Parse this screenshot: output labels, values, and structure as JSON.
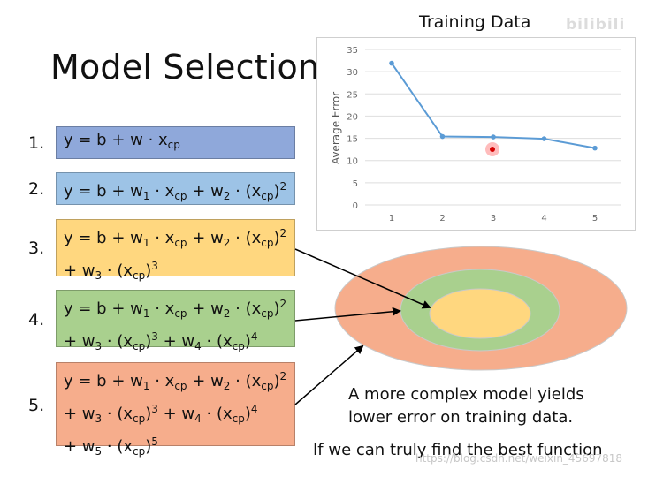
{
  "slide": {
    "title": "Model Selection",
    "watermark": "https://blog.csdn.net/weixin_45697818",
    "logo_text": "bilibili"
  },
  "models": [
    {
      "number": "1."
    },
    {
      "number": "2."
    },
    {
      "number": "3."
    },
    {
      "number": "4."
    },
    {
      "number": "5."
    }
  ],
  "captions": {
    "line1": "A more complex model yields",
    "line2": "lower error on training data.",
    "line3": "If we can truly find the best function"
  },
  "colors": {
    "model1": "#8fa8da",
    "model2": "#9dc3e6",
    "model3": "#ffd77f",
    "model4": "#a9d08e",
    "model5": "#f6ad8c",
    "line": "#5b9bd5"
  },
  "chart_data": {
    "type": "line",
    "title": "Training Data",
    "xlabel": "",
    "ylabel": "Average Error",
    "x": [
      1,
      2,
      3,
      4,
      5
    ],
    "values": [
      31.9,
      15.4,
      15.3,
      14.9,
      12.8
    ],
    "ylim": [
      0,
      35
    ],
    "yticks": [
      0,
      5,
      10,
      15,
      20,
      25,
      30,
      35
    ],
    "grid": true,
    "legend": "none"
  }
}
